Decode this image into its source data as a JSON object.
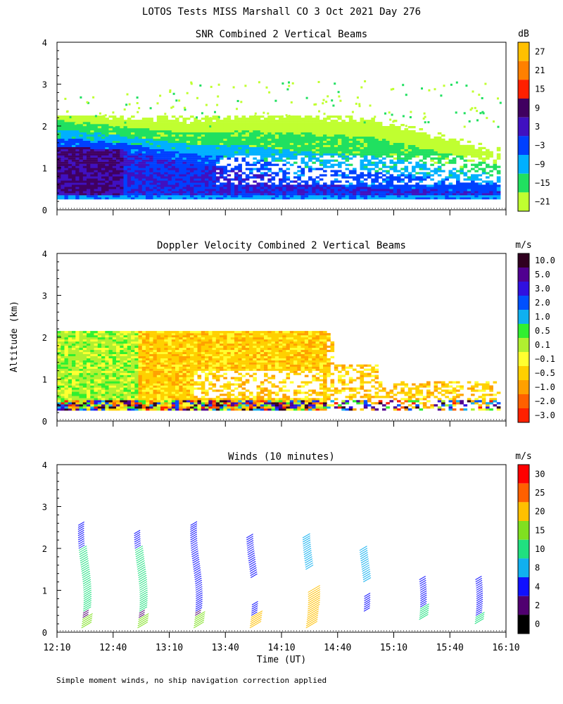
{
  "page": {
    "title": "LOTOS Tests MISS Marshall CO   3 Oct 2021 Day 276",
    "footnote": "Simple moment winds, no ship navigation correction applied",
    "shared_ylabel": "Altitude (km)",
    "shared_xlabel": "Time (UT)"
  },
  "chart_data": [
    {
      "type": "heatmap",
      "title": "SNR Combined 2 Vertical Beams",
      "xlabel": "Time (UT)",
      "ylabel": "Altitude (km)",
      "xlim": [
        "12:10",
        "16:10"
      ],
      "ylim": [
        0,
        4
      ],
      "yticks": [
        0,
        1,
        2,
        3,
        4
      ],
      "colorbar": {
        "unit": "dB",
        "labels": [
          "27",
          "21",
          "15",
          "9",
          "3",
          "−3",
          "−9",
          "−15",
          "−21"
        ],
        "colors": [
          "#ffc000",
          "#ff8000",
          "#ff2000",
          "#400060",
          "#4010c0",
          "#0040ff",
          "#00b0ff",
          "#20e060",
          "#c0ff30"
        ]
      },
      "description_layers": {
        "strong_core_top_km": [
          1.5,
          1.4,
          1.1,
          0.9,
          0.6,
          0.5,
          0.45,
          0.4
        ],
        "echo_top_km": [
          2.3,
          2.1,
          2.0,
          2.1,
          2.1,
          2.0,
          1.6,
          1.2
        ]
      }
    },
    {
      "type": "heatmap",
      "title": "Doppler Velocity Combined 2 Vertical Beams",
      "xlabel": "Time (UT)",
      "ylabel": "Altitude (km)",
      "xlim": [
        "12:10",
        "16:10"
      ],
      "ylim": [
        0,
        4
      ],
      "yticks": [
        0,
        1,
        2,
        3,
        4
      ],
      "colorbar": {
        "unit": "m/s",
        "labels": [
          "10.0",
          "5.0",
          "3.0",
          "2.0",
          "1.0",
          "0.5",
          "0.1",
          "−0.1",
          "−0.5",
          "−1.0",
          "−2.0",
          "−3.0"
        ],
        "colors": [
          "#300020",
          "#500090",
          "#3010e0",
          "#0050ff",
          "#10b0f0",
          "#30f030",
          "#b0f030",
          "#ffff30",
          "#ffd000",
          "#ffa000",
          "#ff6000",
          "#ff2000"
        ]
      }
    },
    {
      "type": "scatter",
      "title": "Winds (10 minutes)",
      "xlabel": "Time (UT)",
      "ylabel": "Altitude (km)",
      "xlim": [
        "12:10",
        "16:10"
      ],
      "ylim": [
        0,
        4
      ],
      "yticks": [
        0,
        1,
        2,
        3,
        4
      ],
      "xticks": [
        "12:10",
        "12:40",
        "13:10",
        "13:40",
        "14:10",
        "14:40",
        "15:10",
        "15:40",
        "16:10"
      ],
      "colorbar": {
        "unit": "m/s",
        "labels": [
          "30",
          "25",
          "20",
          "15",
          "10",
          "8",
          "4",
          "2",
          "0"
        ],
        "colors": [
          "#ff0000",
          "#ff6000",
          "#ffc000",
          "#80e020",
          "#20e080",
          "#10b0f0",
          "#1010ff",
          "#500070",
          "#000000"
        ]
      },
      "profiles": [
        {
          "time": "12:25",
          "segments": [
            [
              0.1,
              0.35,
              18
            ],
            [
              0.35,
              0.5,
              3
            ],
            [
              0.5,
              2.0,
              10
            ],
            [
              2.0,
              2.6,
              4
            ]
          ]
        },
        {
          "time": "12:55",
          "segments": [
            [
              0.1,
              0.35,
              18
            ],
            [
              0.35,
              0.5,
              3
            ],
            [
              0.5,
              2.0,
              10
            ],
            [
              2.0,
              2.4,
              4
            ]
          ]
        },
        {
          "time": "13:25",
          "segments": [
            [
              0.1,
              0.4,
              18
            ],
            [
              0.4,
              0.5,
              3
            ],
            [
              0.5,
              2.6,
              6
            ]
          ]
        },
        {
          "time": "13:55",
          "segments": [
            [
              0.1,
              0.4,
              22
            ],
            [
              0.4,
              0.7,
              4
            ],
            [
              1.3,
              2.3,
              6
            ]
          ]
        },
        {
          "time": "14:25",
          "segments": [
            [
              0.1,
              0.5,
              22
            ],
            [
              0.5,
              1.0,
              24
            ],
            [
              1.5,
              2.3,
              9
            ]
          ]
        },
        {
          "time": "14:55",
          "segments": [
            [
              0.5,
              0.9,
              4
            ],
            [
              1.2,
              2.0,
              9
            ]
          ]
        },
        {
          "time": "15:25",
          "segments": [
            [
              0.3,
              0.6,
              14
            ],
            [
              0.6,
              1.3,
              5
            ]
          ]
        },
        {
          "time": "15:55",
          "segments": [
            [
              0.2,
              0.4,
              14
            ],
            [
              0.4,
              1.3,
              5
            ]
          ]
        }
      ]
    }
  ]
}
